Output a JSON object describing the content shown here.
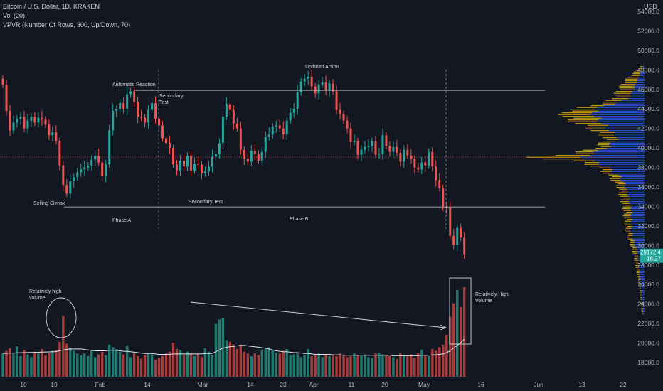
{
  "header": {
    "symbol_line": "Bitcoin / U.S. Dollar, 1D, KRAKEN",
    "vol_line": "Vol (20)",
    "vpvr_line": "VPVR (Number Of Rows, 300, Up/Down, 70)",
    "currency": "USD"
  },
  "colors": {
    "background": "#131722",
    "up": "#26a69a",
    "down": "#ef5350",
    "vpvr_up": "#2962ff",
    "vpvr_down": "#f0b90b",
    "text": "#b2b5be",
    "annotation": "#d1d4dc",
    "price_tag": "#26a69a"
  },
  "price_tag": {
    "value": "29172.4",
    "countdown": "16:27"
  },
  "chart_data": {
    "type": "candlestick",
    "ylim": [
      16500,
      55000
    ],
    "y_ticks": [
      "18000.0",
      "20000.0",
      "22000.0",
      "24000.0",
      "26000.0",
      "28000.0",
      "30000.0",
      "32000.0",
      "34000.0",
      "36000.0",
      "38000.0",
      "40000.0",
      "42000.0",
      "44000.0",
      "46000.0",
      "48000.0",
      "50000.0",
      "52000.0",
      "54000.0"
    ],
    "x_ticks": [
      "10",
      "19",
      "Feb",
      "14",
      "Mar",
      "14",
      "23",
      "Apr",
      "11",
      "20",
      "May",
      "16",
      "Jun",
      "13",
      "22"
    ],
    "candle_closes": [
      46500,
      43800,
      41800,
      42600,
      43000,
      43200,
      42000,
      42800,
      43200,
      42600,
      43100,
      42900,
      42400,
      41300,
      41600,
      40700,
      38200,
      36200,
      35300,
      36600,
      37000,
      37500,
      37800,
      38000,
      38200,
      38800,
      39200,
      38500,
      37100,
      38300,
      41800,
      43800,
      44000,
      44600,
      44000,
      45500,
      45800,
      44700,
      43200,
      43100,
      42600,
      43900,
      44600,
      43000,
      42300,
      41000,
      40500,
      40000,
      38300,
      37700,
      38700,
      38100,
      39200,
      37700,
      38400,
      38300,
      37400,
      37600,
      38100,
      39100,
      39400,
      40500,
      43200,
      44500,
      43900,
      42500,
      42000,
      39800,
      38900,
      38600,
      39700,
      39400,
      38700,
      39600,
      41100,
      41400,
      42200,
      42300,
      42000,
      41400,
      42800,
      43600,
      44000,
      45700,
      46800,
      47100,
      47300,
      46300,
      45600,
      46500,
      46700,
      45900,
      46600,
      45800,
      43900,
      43500,
      42800,
      42000,
      40600,
      40700,
      39300,
      39800,
      40100,
      40200,
      40700,
      39300,
      39400,
      41300,
      40200,
      39600,
      40100,
      39500,
      38600,
      39800,
      39200,
      38900,
      38000,
      37800,
      38500,
      38200,
      39600,
      38100,
      36700,
      35900,
      34000,
      33900,
      31000,
      30100,
      31800,
      30800,
      29100
    ],
    "volume_by_day": [
      2600,
      2900,
      3200,
      2700,
      3400,
      2300,
      3000,
      2500,
      2200,
      2800,
      2600,
      3100,
      2400,
      2700,
      2900,
      3000,
      3900,
      6800,
      3700,
      3200,
      2900,
      2600,
      2400,
      2600,
      2300,
      3000,
      2200,
      2500,
      2800,
      2400,
      3600,
      3300,
      3100,
      2800,
      2500,
      3500,
      2200,
      2600,
      2300,
      2000,
      2400,
      2700,
      2500,
      1900,
      2100,
      2300,
      2600,
      2800,
      3800,
      3100,
      3000,
      2400,
      2800,
      2600,
      2300,
      2500,
      2200,
      3200,
      2800,
      2400,
      5900,
      6400,
      6500,
      4100,
      3900,
      3600,
      3100,
      3600,
      2800,
      2600,
      2300,
      2600,
      2400,
      3000,
      3200,
      3300,
      3000,
      2700,
      2600,
      2900,
      3100,
      2400,
      2500,
      2600,
      2200,
      2400,
      3100,
      2300,
      2400,
      2600,
      2200,
      2500,
      2300,
      2400,
      2300,
      2600,
      2500,
      2200,
      2300,
      2600,
      2400,
      2300,
      2500,
      2200,
      2100,
      2600,
      2700,
      2500,
      2400,
      2300,
      2200,
      2000,
      2600,
      2400,
      2300,
      2500,
      2100,
      2700,
      3000,
      2400,
      2300,
      3100,
      2900,
      3300,
      3600,
      4700,
      6700,
      8200,
      9700,
      7800,
      10000
    ],
    "vol_ma20_by_day": [
      2600,
      2620,
      2640,
      2660,
      2680,
      2690,
      2700,
      2710,
      2720,
      2730,
      2740,
      2760,
      2770,
      2780,
      2800,
      2820,
      2900,
      3000,
      3050,
      3100,
      3100,
      3100,
      3100,
      3050,
      3000,
      2950,
      2900,
      2900,
      2900,
      2900,
      2950,
      2950,
      2950,
      2900,
      2850,
      2850,
      2800,
      2750,
      2700,
      2650,
      2600,
      2600,
      2600,
      2550,
      2500,
      2500,
      2500,
      2500,
      2550,
      2550,
      2550,
      2550,
      2550,
      2550,
      2550,
      2550,
      2550,
      2600,
      2600,
      2600,
      2800,
      3000,
      3200,
      3300,
      3350,
      3400,
      3450,
      3500,
      3500,
      3450,
      3400,
      3350,
      3300,
      3250,
      3200,
      3100,
      3000,
      2900,
      2850,
      2800,
      2800,
      2750,
      2700,
      2700,
      2650,
      2600,
      2600,
      2550,
      2500,
      2500,
      2500,
      2500,
      2500,
      2450,
      2450,
      2450,
      2400,
      2400,
      2400,
      2400,
      2400,
      2400,
      2400,
      2400,
      2400,
      2400,
      2400,
      2400,
      2400,
      2400,
      2350,
      2350,
      2350,
      2350,
      2350,
      2350,
      2350,
      2350,
      2400,
      2400,
      2400,
      2450,
      2450,
      2500,
      2550,
      2700,
      2900,
      3200,
      3500,
      3800,
      4200
    ],
    "vpvr": {
      "rows": 300,
      "price_points": [
        23000,
        26000,
        29000,
        31500,
        34000,
        36000,
        37000,
        38000,
        38600,
        39000,
        39400,
        40000,
        41000,
        42000,
        43000,
        43800,
        44300,
        45000,
        46000,
        47000,
        48500
      ],
      "down_volume_fraction": [
        0.02,
        0.04,
        0.08,
        0.14,
        0.16,
        0.2,
        0.26,
        0.36,
        0.5,
        0.86,
        0.55,
        0.36,
        0.3,
        0.42,
        0.6,
        0.62,
        0.4,
        0.24,
        0.2,
        0.14,
        0.02
      ],
      "up_volume_fraction": [
        0.01,
        0.03,
        0.05,
        0.1,
        0.1,
        0.14,
        0.18,
        0.28,
        0.38,
        0.46,
        0.4,
        0.28,
        0.2,
        0.28,
        0.36,
        0.4,
        0.3,
        0.12,
        0.08,
        0.05,
        0.01
      ]
    },
    "levels": [
      {
        "price": 45900,
        "style": "solid"
      },
      {
        "price": 33950,
        "style": "solid"
      },
      {
        "price": 39050,
        "style": "dotted-red"
      }
    ],
    "annotations": [
      {
        "text": "Automatic Reaction"
      },
      {
        "text": "Secondary"
      },
      {
        "text": "Test"
      },
      {
        "text": "Upthrust Action"
      },
      {
        "text": "Selling Climax"
      },
      {
        "text": "Secondary Test"
      },
      {
        "text": "Phase A"
      },
      {
        "text": "Phase B"
      },
      {
        "text": "Relatively high"
      },
      {
        "text": "volume"
      },
      {
        "text": "Relatively High"
      },
      {
        "text": "Volume"
      }
    ]
  }
}
